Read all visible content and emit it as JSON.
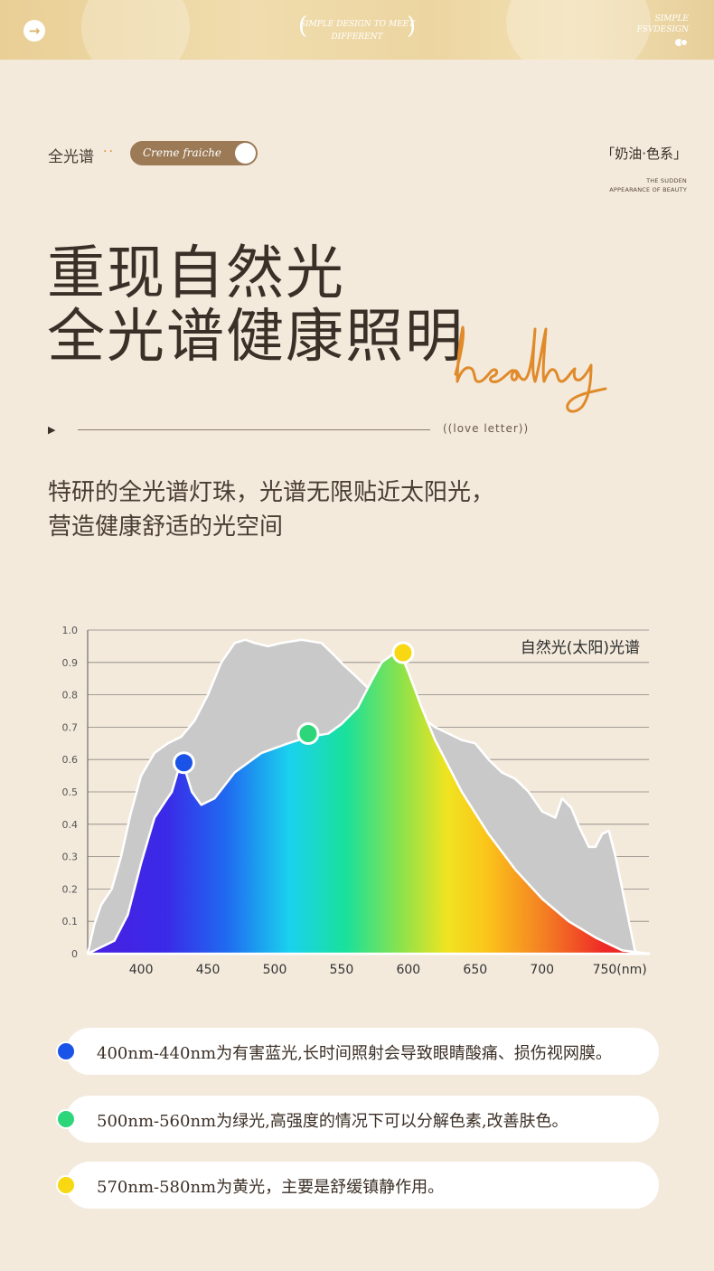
{
  "banner": {
    "center_text": "SIMPLE DESIGN TO MEET DIFFERENT",
    "right_text": "SIMPLE FSVDESIGN"
  },
  "header": {
    "tag_label": "全光谱",
    "tag_dots": "··",
    "pill_text": "Creme fraiche",
    "series": "「奶油·色系」",
    "sudden": "THE SUDDEN APPEARANCE OF BEAUTY"
  },
  "headline": {
    "line1": "重现自然光",
    "line2": "全光谱健康照明",
    "script": "healthy"
  },
  "divider": {
    "love": "((love letter))"
  },
  "description": {
    "line1": "特研的全光谱灯珠，光谱无限贴近太阳光，",
    "line2": "营造健康舒适的光空间"
  },
  "chart_data": {
    "type": "area",
    "title": "",
    "xlabel": "",
    "ylabel": "",
    "x_tick_labels": [
      "400",
      "450",
      "500",
      "550",
      "600",
      "650",
      "700",
      "750(nm)"
    ],
    "y_tick_labels": [
      "0",
      "0.1",
      "0.2",
      "0.3",
      "0.4",
      "0.5",
      "0.6",
      "0.7",
      "0.8",
      "0.9",
      "1.0"
    ],
    "xlim": [
      360,
      780
    ],
    "ylim": [
      0,
      1.0
    ],
    "legend": {
      "label": "自然光(太阳)光谱",
      "position": "top-right"
    },
    "series": [
      {
        "name": "自然光(太阳)光谱",
        "color": "#c9c9c9",
        "x": [
          360,
          365,
          370,
          378,
          385,
          392,
          400,
          410,
          420,
          430,
          440,
          450,
          460,
          470,
          478,
          485,
          495,
          505,
          520,
          535,
          545,
          552,
          560,
          570,
          580,
          590,
          600,
          610,
          620,
          630,
          640,
          650,
          660,
          670,
          680,
          690,
          700,
          710,
          715,
          722,
          728,
          735,
          740,
          745,
          750,
          755,
          760,
          765,
          770,
          775,
          780
        ],
        "values": [
          0.0,
          0.09,
          0.15,
          0.2,
          0.3,
          0.43,
          0.55,
          0.62,
          0.65,
          0.67,
          0.72,
          0.8,
          0.9,
          0.96,
          0.97,
          0.96,
          0.95,
          0.96,
          0.97,
          0.96,
          0.92,
          0.89,
          0.86,
          0.82,
          0.78,
          0.76,
          0.75,
          0.73,
          0.7,
          0.68,
          0.66,
          0.65,
          0.6,
          0.56,
          0.54,
          0.5,
          0.44,
          0.42,
          0.48,
          0.45,
          0.39,
          0.33,
          0.33,
          0.37,
          0.38,
          0.3,
          0.2,
          0.1,
          0.0,
          0.0,
          0.0
        ]
      },
      {
        "name": "",
        "color": "spectrum",
        "x": [
          360,
          380,
          390,
          400,
          410,
          418,
          423,
          428,
          432,
          438,
          445,
          455,
          470,
          490,
          510,
          525,
          540,
          550,
          562,
          572,
          580,
          590,
          596,
          600,
          610,
          620,
          640,
          660,
          680,
          700,
          720,
          740,
          760,
          780
        ],
        "values": [
          0.0,
          0.04,
          0.12,
          0.28,
          0.42,
          0.47,
          0.5,
          0.57,
          0.58,
          0.5,
          0.46,
          0.48,
          0.56,
          0.62,
          0.65,
          0.67,
          0.68,
          0.71,
          0.76,
          0.84,
          0.9,
          0.93,
          0.91,
          0.87,
          0.76,
          0.66,
          0.5,
          0.37,
          0.26,
          0.17,
          0.1,
          0.05,
          0.01,
          0.0
        ]
      }
    ],
    "markers": [
      {
        "x": 432,
        "y": 0.59,
        "color": "#1a53e8"
      },
      {
        "x": 525,
        "y": 0.68,
        "color": "#2ed67a"
      },
      {
        "x": 596,
        "y": 0.93,
        "color": "#f7d812"
      }
    ]
  },
  "notes": [
    {
      "text": "400nm-440nm为有害蓝光,长时间照射会导致眼睛酸痛、损伤视网膜。",
      "color": "#1a53e8"
    },
    {
      "text": "500nm-560nm为绿光,高强度的情况下可以分解色素,改善肤色。",
      "color": "#2ed67a"
    },
    {
      "text": "570nm-580nm为黄光，主要是舒缓镇静作用。",
      "color": "#f7d812"
    }
  ]
}
